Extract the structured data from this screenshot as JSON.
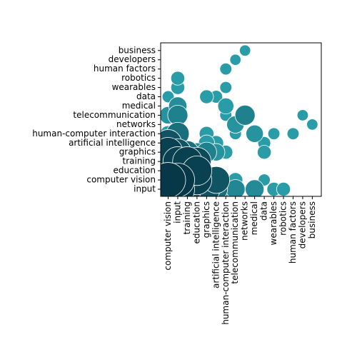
{
  "chart_data": {
    "type": "scatter",
    "subtype": "bubble-matrix",
    "title": "",
    "xlabel": "",
    "ylabel": "",
    "x_categories": [
      "computer vision",
      "input",
      "training",
      "education",
      "graphics",
      "artificial intelligence",
      "human-computer interaction",
      "telecommunication",
      "networks",
      "medical",
      "data",
      "wearables",
      "robotics",
      "human factors",
      "developers",
      "business"
    ],
    "y_categories": [
      "input",
      "computer vision",
      "education",
      "training",
      "graphics",
      "artificial intelligence",
      "human-computer interaction",
      "networks",
      "telecommunication",
      "medical",
      "data",
      "wearables",
      "robotics",
      "human factors",
      "developers",
      "business"
    ],
    "size_scale": "larger bubble = larger value; darker = larger value",
    "colors": {
      "low": "#2a9ca8",
      "high": "#063848",
      "edge": "#ffffff"
    },
    "points": [
      {
        "x": "computer vision",
        "y": "input",
        "value": 0.85
      },
      {
        "x": "computer vision",
        "y": "computer vision",
        "value": 1.0
      },
      {
        "x": "computer vision",
        "y": "education",
        "value": 0.7
      },
      {
        "x": "computer vision",
        "y": "training",
        "value": 0.75
      },
      {
        "x": "computer vision",
        "y": "graphics",
        "value": 0.8
      },
      {
        "x": "computer vision",
        "y": "artificial intelligence",
        "value": 0.7
      },
      {
        "x": "computer vision",
        "y": "human-computer interaction",
        "value": 0.3
      },
      {
        "x": "computer vision",
        "y": "telecommunication",
        "value": 0.35
      },
      {
        "x": "computer vision",
        "y": "data",
        "value": 0.15
      },
      {
        "x": "input",
        "y": "input",
        "value": 0.95
      },
      {
        "x": "input",
        "y": "computer vision",
        "value": 0.95
      },
      {
        "x": "input",
        "y": "education",
        "value": 0.8
      },
      {
        "x": "input",
        "y": "training",
        "value": 0.8
      },
      {
        "x": "input",
        "y": "graphics",
        "value": 0.7
      },
      {
        "x": "input",
        "y": "artificial intelligence",
        "value": 0.45
      },
      {
        "x": "input",
        "y": "human-computer interaction",
        "value": 0.55
      },
      {
        "x": "input",
        "y": "telecommunication",
        "value": 0.45
      },
      {
        "x": "input",
        "y": "medical",
        "value": 0.38
      },
      {
        "x": "input",
        "y": "wearables",
        "value": 0.22
      },
      {
        "x": "input",
        "y": "robotics",
        "value": 0.22
      },
      {
        "x": "training",
        "y": "input",
        "value": 0.75
      },
      {
        "x": "training",
        "y": "computer vision",
        "value": 0.8
      },
      {
        "x": "training",
        "y": "education",
        "value": 0.8
      },
      {
        "x": "training",
        "y": "training",
        "value": 0.8
      },
      {
        "x": "training",
        "y": "graphics",
        "value": 0.55
      },
      {
        "x": "education",
        "y": "input",
        "value": 0.7
      },
      {
        "x": "education",
        "y": "computer vision",
        "value": 0.8
      },
      {
        "x": "education",
        "y": "education",
        "value": 0.8
      },
      {
        "x": "education",
        "y": "training",
        "value": 0.75
      },
      {
        "x": "education",
        "y": "graphics",
        "value": 0.4
      },
      {
        "x": "graphics",
        "y": "input",
        "value": 0.7
      },
      {
        "x": "graphics",
        "y": "computer vision",
        "value": 0.65
      },
      {
        "x": "graphics",
        "y": "graphics",
        "value": 0.45
      },
      {
        "x": "graphics",
        "y": "artificial intelligence",
        "value": 0.3
      },
      {
        "x": "graphics",
        "y": "human-computer interaction",
        "value": 0.25
      },
      {
        "x": "graphics",
        "y": "data",
        "value": 0.22
      },
      {
        "x": "artificial intelligence",
        "y": "input",
        "value": 0.55
      },
      {
        "x": "artificial intelligence",
        "y": "computer vision",
        "value": 0.7
      },
      {
        "x": "artificial intelligence",
        "y": "graphics",
        "value": 0.35
      },
      {
        "x": "artificial intelligence",
        "y": "artificial intelligence",
        "value": 0.25
      },
      {
        "x": "artificial intelligence",
        "y": "data",
        "value": 0.18
      },
      {
        "x": "human-computer interaction",
        "y": "input",
        "value": 0.4
      },
      {
        "x": "human-computer interaction",
        "y": "computer vision",
        "value": 0.15
      },
      {
        "x": "human-computer interaction",
        "y": "graphics",
        "value": 0.22
      },
      {
        "x": "human-computer interaction",
        "y": "telecommunication",
        "value": 0.15
      },
      {
        "x": "human-computer interaction",
        "y": "medical",
        "value": 0.3
      },
      {
        "x": "human-computer interaction",
        "y": "wearables",
        "value": 0.15
      },
      {
        "x": "human-computer interaction",
        "y": "human factors",
        "value": 0.15
      },
      {
        "x": "telecommunication",
        "y": "input",
        "value": 0.42
      },
      {
        "x": "telecommunication",
        "y": "computer vision",
        "value": 0.25
      },
      {
        "x": "telecommunication",
        "y": "human-computer interaction",
        "value": 0.15
      },
      {
        "x": "telecommunication",
        "y": "networks",
        "value": 0.35
      },
      {
        "x": "telecommunication",
        "y": "developers",
        "value": 0.12
      },
      {
        "x": "networks",
        "y": "telecommunication",
        "value": 0.45
      },
      {
        "x": "networks",
        "y": "business",
        "value": 0.12
      },
      {
        "x": "medical",
        "y": "input",
        "value": 0.4
      },
      {
        "x": "medical",
        "y": "human-computer interaction",
        "value": 0.35
      },
      {
        "x": "data",
        "y": "computer vision",
        "value": 0.15
      },
      {
        "x": "data",
        "y": "graphics",
        "value": 0.22
      },
      {
        "x": "data",
        "y": "artificial intelligence",
        "value": 0.18
      },
      {
        "x": "wearables",
        "y": "input",
        "value": 0.22
      },
      {
        "x": "wearables",
        "y": "human-computer interaction",
        "value": 0.15
      },
      {
        "x": "robotics",
        "y": "input",
        "value": 0.22
      },
      {
        "x": "human factors",
        "y": "human-computer interaction",
        "value": 0.15
      },
      {
        "x": "developers",
        "y": "telecommunication",
        "value": 0.12
      },
      {
        "x": "business",
        "y": "networks",
        "value": 0.12
      }
    ]
  }
}
